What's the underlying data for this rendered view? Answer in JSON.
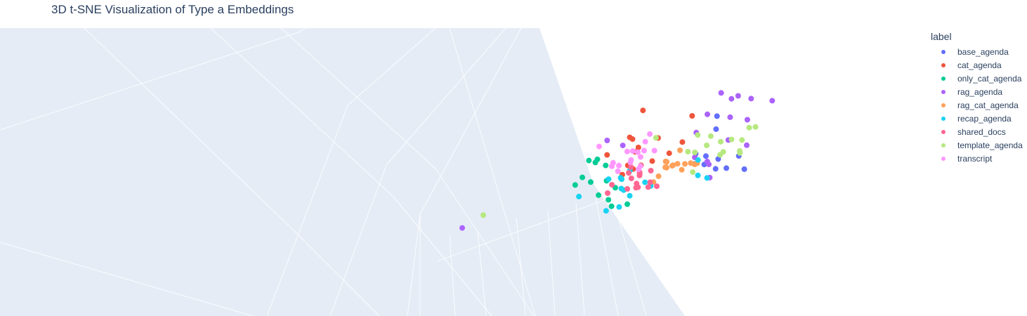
{
  "chart_data": {
    "type": "scatter",
    "title": "3D t-SNE Visualization of Type a Embeddings",
    "legend_title": "label",
    "legend_position": "top-right",
    "grid": true,
    "series": [
      {
        "name": "base_agenda",
        "color": "#636efa",
        "x": [
          1.3,
          1.57,
          1.04,
          1.76,
          1.83,
          1.46,
          1.51,
          1.66,
          1.69,
          1.75,
          1.34
        ],
        "y": [
          2.03,
          1.93,
          1.61,
          1.39,
          1.58,
          1.44,
          1.42,
          1.57,
          1.59,
          1.68,
          1.55
        ],
        "z": [
          -0.58,
          -0.04,
          -0.31,
          -0.69,
          -0.36,
          -0.23,
          -0.52,
          0.55,
          0.11,
          0.66,
          0.28
        ]
      },
      {
        "name": "cat_agenda",
        "color": "#ef553b",
        "x": [
          0.06,
          0.14,
          0.23,
          0.24,
          0.29,
          0.24,
          -0.26,
          0.52,
          -0.05,
          0.14,
          0.34,
          0.46,
          0.7,
          -0.2,
          0.44
        ],
        "y": [
          2.13,
          1.5,
          1.78,
          1.86,
          1.9,
          1.74,
          1.47,
          1.7,
          1.42,
          1.68,
          1.58,
          1.57,
          2.01,
          1.68,
          1.54
        ],
        "z": [
          -0.27,
          -0.05,
          -0.49,
          0.44,
          0.63,
          0.23,
          -0.33,
          -0.81,
          0.26,
          0.16,
          -0.68,
          0.15,
          -0.82,
          0.52,
          0.79
        ]
      },
      {
        "name": "only_cat_agenda",
        "color": "#00cc96",
        "x": [
          -0.43,
          -0.53,
          -0.82,
          -0.91,
          -0.76,
          -0.72,
          -0.85,
          -0.2,
          -0.62,
          -0.8,
          -0.69,
          -0.27,
          -0.55
        ],
        "y": [
          1.1,
          1.2,
          1.3,
          1.1,
          0.95,
          1.34,
          1.51,
          1.56,
          1.6,
          1.55,
          1.41,
          1.01,
          1.31
        ],
        "z": [
          0.04,
          -0.39,
          -0.06,
          -0.51,
          -0.69,
          0.68,
          -0.28,
          0.57,
          0.38,
          -0.26,
          0.48,
          -0.33,
          -0.12
        ]
      },
      {
        "name": "rag_agenda",
        "color": "#ab63fa",
        "x": [
          1.72,
          1.91,
          1.88,
          1.21,
          1.48,
          2.01,
          1.52,
          -0.13,
          2.05,
          2.22,
          1.94,
          1.53,
          1.46,
          -0.05,
          -3.13,
          1.65,
          1.37,
          1.9
        ],
        "y": [
          2.37,
          2.31,
          2.08,
          1.51,
          2.12,
          1.84,
          1.95,
          1.75,
          1.72,
          2.19,
          2.0,
          1.53,
          1.65,
          1.88,
          0.78,
          2.25,
          1.34,
          2.23
        ],
        "z": [
          0.06,
          -0.19,
          0.04,
          -0.4,
          0.1,
          0.35,
          0.57,
          0.09,
          -0.23,
          -0.82,
          -0.46,
          0.14,
          0.51,
          0.8,
          0.18,
          -0.44,
          -0.19,
          -0.67
        ]
      },
      {
        "name": "rag_cat_agenda",
        "color": "#ffa15a",
        "x": [
          0.89,
          0.47,
          1.09,
          1.26,
          0.63,
          0.72,
          0.94,
          0.57,
          0.67,
          0.74,
          0.61,
          0.26,
          0.87,
          1.13,
          0.83,
          0.69
        ],
        "y": [
          1.59,
          1.52,
          1.48,
          1.56,
          1.48,
          1.49,
          1.47,
          1.62,
          1.49,
          1.42,
          1.47,
          1.28,
          1.52,
          1.51,
          1.49,
          1.49
        ],
        "z": [
          0.44,
          -0.31,
          0.28,
          0.28,
          -0.43,
          0.13,
          -0.46,
          -0.63,
          0.08,
          0.45,
          -0.08,
          -0.27,
          0.21,
          -0.19,
          -0.32,
          -0.16
        ]
      },
      {
        "name": "recap_agenda",
        "color": "#19d3f3",
        "x": [
          -0.47,
          0.08,
          -0.31,
          -0.31,
          -0.06,
          -0.01,
          1.26,
          -0.06,
          0.44,
          -0.56,
          -0.04,
          1.66,
          0.9,
          -0.52,
          -0.66
        ],
        "y": [
          1.18,
          1.21,
          1.34,
          1.0,
          1.23,
          1.15,
          1.57,
          1.44,
          1.34,
          1.32,
          1.37,
          1.4,
          1.32,
          0.96,
          1.2
        ],
        "z": [
          -0.49,
          -0.51,
          -0.17,
          0.35,
          0.19,
          0.07,
          0.02,
          -0.03,
          0.37,
          -0.21,
          0.3,
          0.45,
          -0.65,
          -0.51,
          0.66
        ]
      },
      {
        "name": "shared_docs",
        "color": "#ff6692",
        "x": [
          0.13,
          0.16,
          0.11,
          0.23,
          0.32,
          -0.28,
          0.33,
          -0.12,
          -0.12,
          0.35,
          0.09,
          -0.04,
          -0.26,
          0.1,
          -0.3,
          0.13
        ],
        "y": [
          1.25,
          1.27,
          1.19,
          1.44,
          1.25,
          1.21,
          1.42,
          1.25,
          1.22,
          1.29,
          1.37,
          1.42,
          1.44,
          1.4,
          1.29,
          1.4
        ],
        "z": [
          0.11,
          -0.34,
          -0.67,
          0.17,
          0.03,
          0.35,
          0.36,
          -0.38,
          -0.05,
          0.45,
          0.2,
          0.05,
          -0.44,
          -0.08,
          0.16,
          -0.42
        ]
      },
      {
        "name": "template_agenda",
        "color": "#b6e880",
        "x": [
          1.44,
          1.95,
          1.64,
          1.67,
          1.34,
          1.18,
          2.02,
          1.04,
          1.27,
          1.54,
          1.3,
          1.61,
          1.82,
          0.28,
          -2.63,
          1.89,
          1.92
        ],
        "y": [
          1.74,
          1.78,
          1.6,
          1.79,
          1.46,
          1.69,
          1.9,
          1.63,
          1.87,
          1.86,
          1.56,
          1.76,
          1.61,
          1.8,
          0.95,
          1.89,
          1.7
        ],
        "z": [
          -0.45,
          -0.25,
          -0.75,
          0.48,
          0.36,
          0.23,
          -0.6,
          -0.28,
          0.05,
          0.09,
          -0.69,
          -0.52,
          -0.42,
          -0.32,
          0.37,
          -0.62,
          0.36
        ]
      },
      {
        "name": "transcript",
        "color": "#ff97ff",
        "x": [
          -0.19,
          0.03,
          -0.07,
          -0.07,
          -0.03,
          0.29,
          0.07,
          0.23,
          0.25,
          -0.06,
          0.19,
          0.15,
          -0.04,
          -0.24,
          -0.05,
          0.32,
          -0.05
        ],
        "y": [
          1.81,
          1.55,
          1.8,
          1.59,
          1.56,
          1.49,
          1.65,
          1.73,
          1.62,
          1.63,
          1.61,
          1.7,
          1.46,
          1.44,
          1.73,
          1.66,
          1.54
        ],
        "z": [
          0.82,
          0.12,
          -0.76,
          0.55,
          0.67,
          0.32,
          -0.29,
          0.61,
          0.51,
          -0.31,
          0.06,
          0.26,
          -0.37,
          0.06,
          -0.56,
          -0.19,
          0.38
        ]
      }
    ]
  }
}
